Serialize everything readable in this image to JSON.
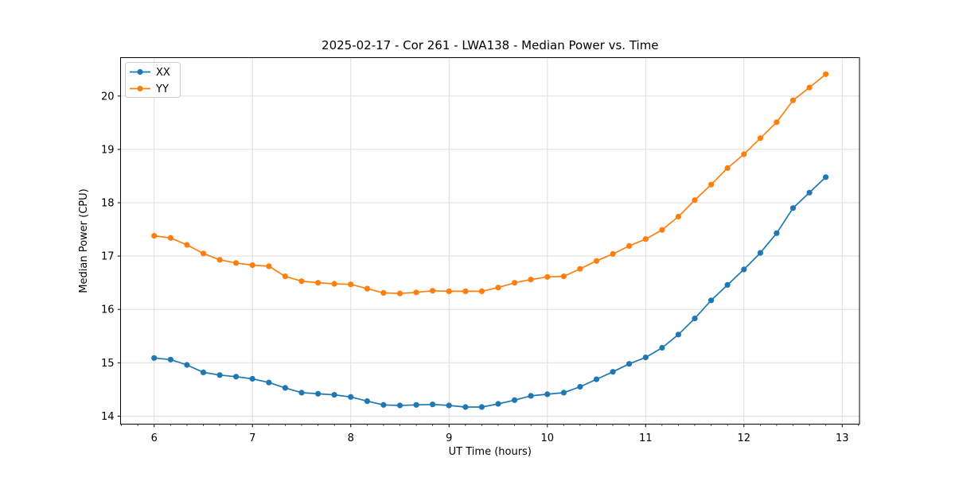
{
  "chart_data": {
    "type": "line",
    "title": "2025-02-17 - Cor 261 - LWA138 - Median Power vs. Time",
    "xlabel": "UT Time (hours)",
    "ylabel": "Median Power (CPU)",
    "xlim": [
      5.658,
      13.176
    ],
    "ylim": [
      13.85,
      20.72
    ],
    "x_ticks": [
      6,
      7,
      8,
      9,
      10,
      11,
      12,
      13
    ],
    "y_ticks": [
      14,
      15,
      16,
      17,
      18,
      19,
      20
    ],
    "x_minor_step": 0.1667,
    "grid": true,
    "grid_color": "#dedede",
    "axis_color": "#000000",
    "legend_position": "upper left",
    "x": [
      6.0,
      6.167,
      6.333,
      6.5,
      6.667,
      6.833,
      7.0,
      7.167,
      7.333,
      7.5,
      7.667,
      7.833,
      8.0,
      8.167,
      8.333,
      8.5,
      8.667,
      8.833,
      9.0,
      9.167,
      9.333,
      9.5,
      9.667,
      9.833,
      10.0,
      10.167,
      10.333,
      10.5,
      10.667,
      10.833,
      11.0,
      11.167,
      11.333,
      11.5,
      11.667,
      11.833,
      12.0,
      12.167,
      12.333,
      12.5,
      12.667,
      12.833
    ],
    "series": [
      {
        "name": "XX",
        "color": "#1f77b4",
        "values": [
          15.09,
          15.06,
          14.96,
          14.82,
          14.77,
          14.74,
          14.7,
          14.63,
          14.53,
          14.44,
          14.42,
          14.4,
          14.36,
          14.28,
          14.21,
          14.2,
          14.21,
          14.22,
          14.2,
          14.17,
          14.17,
          14.23,
          14.3,
          14.38,
          14.41,
          14.44,
          14.55,
          14.69,
          14.83,
          14.98,
          15.1,
          15.28,
          15.53,
          15.83,
          16.17,
          16.46,
          16.75,
          17.06,
          17.43,
          17.9,
          18.19,
          18.48
        ]
      },
      {
        "name": "YY",
        "color": "#ff7f0e",
        "values": [
          17.38,
          17.34,
          17.21,
          17.05,
          16.93,
          16.87,
          16.83,
          16.81,
          16.62,
          16.53,
          16.5,
          16.48,
          16.47,
          16.39,
          16.31,
          16.3,
          16.32,
          16.35,
          16.34,
          16.34,
          16.34,
          16.41,
          16.5,
          16.56,
          16.61,
          16.62,
          16.76,
          16.91,
          17.04,
          17.19,
          17.32,
          17.49,
          17.74,
          18.05,
          18.34,
          18.65,
          18.91,
          19.21,
          19.51,
          19.92,
          20.16,
          20.41
        ]
      }
    ]
  }
}
